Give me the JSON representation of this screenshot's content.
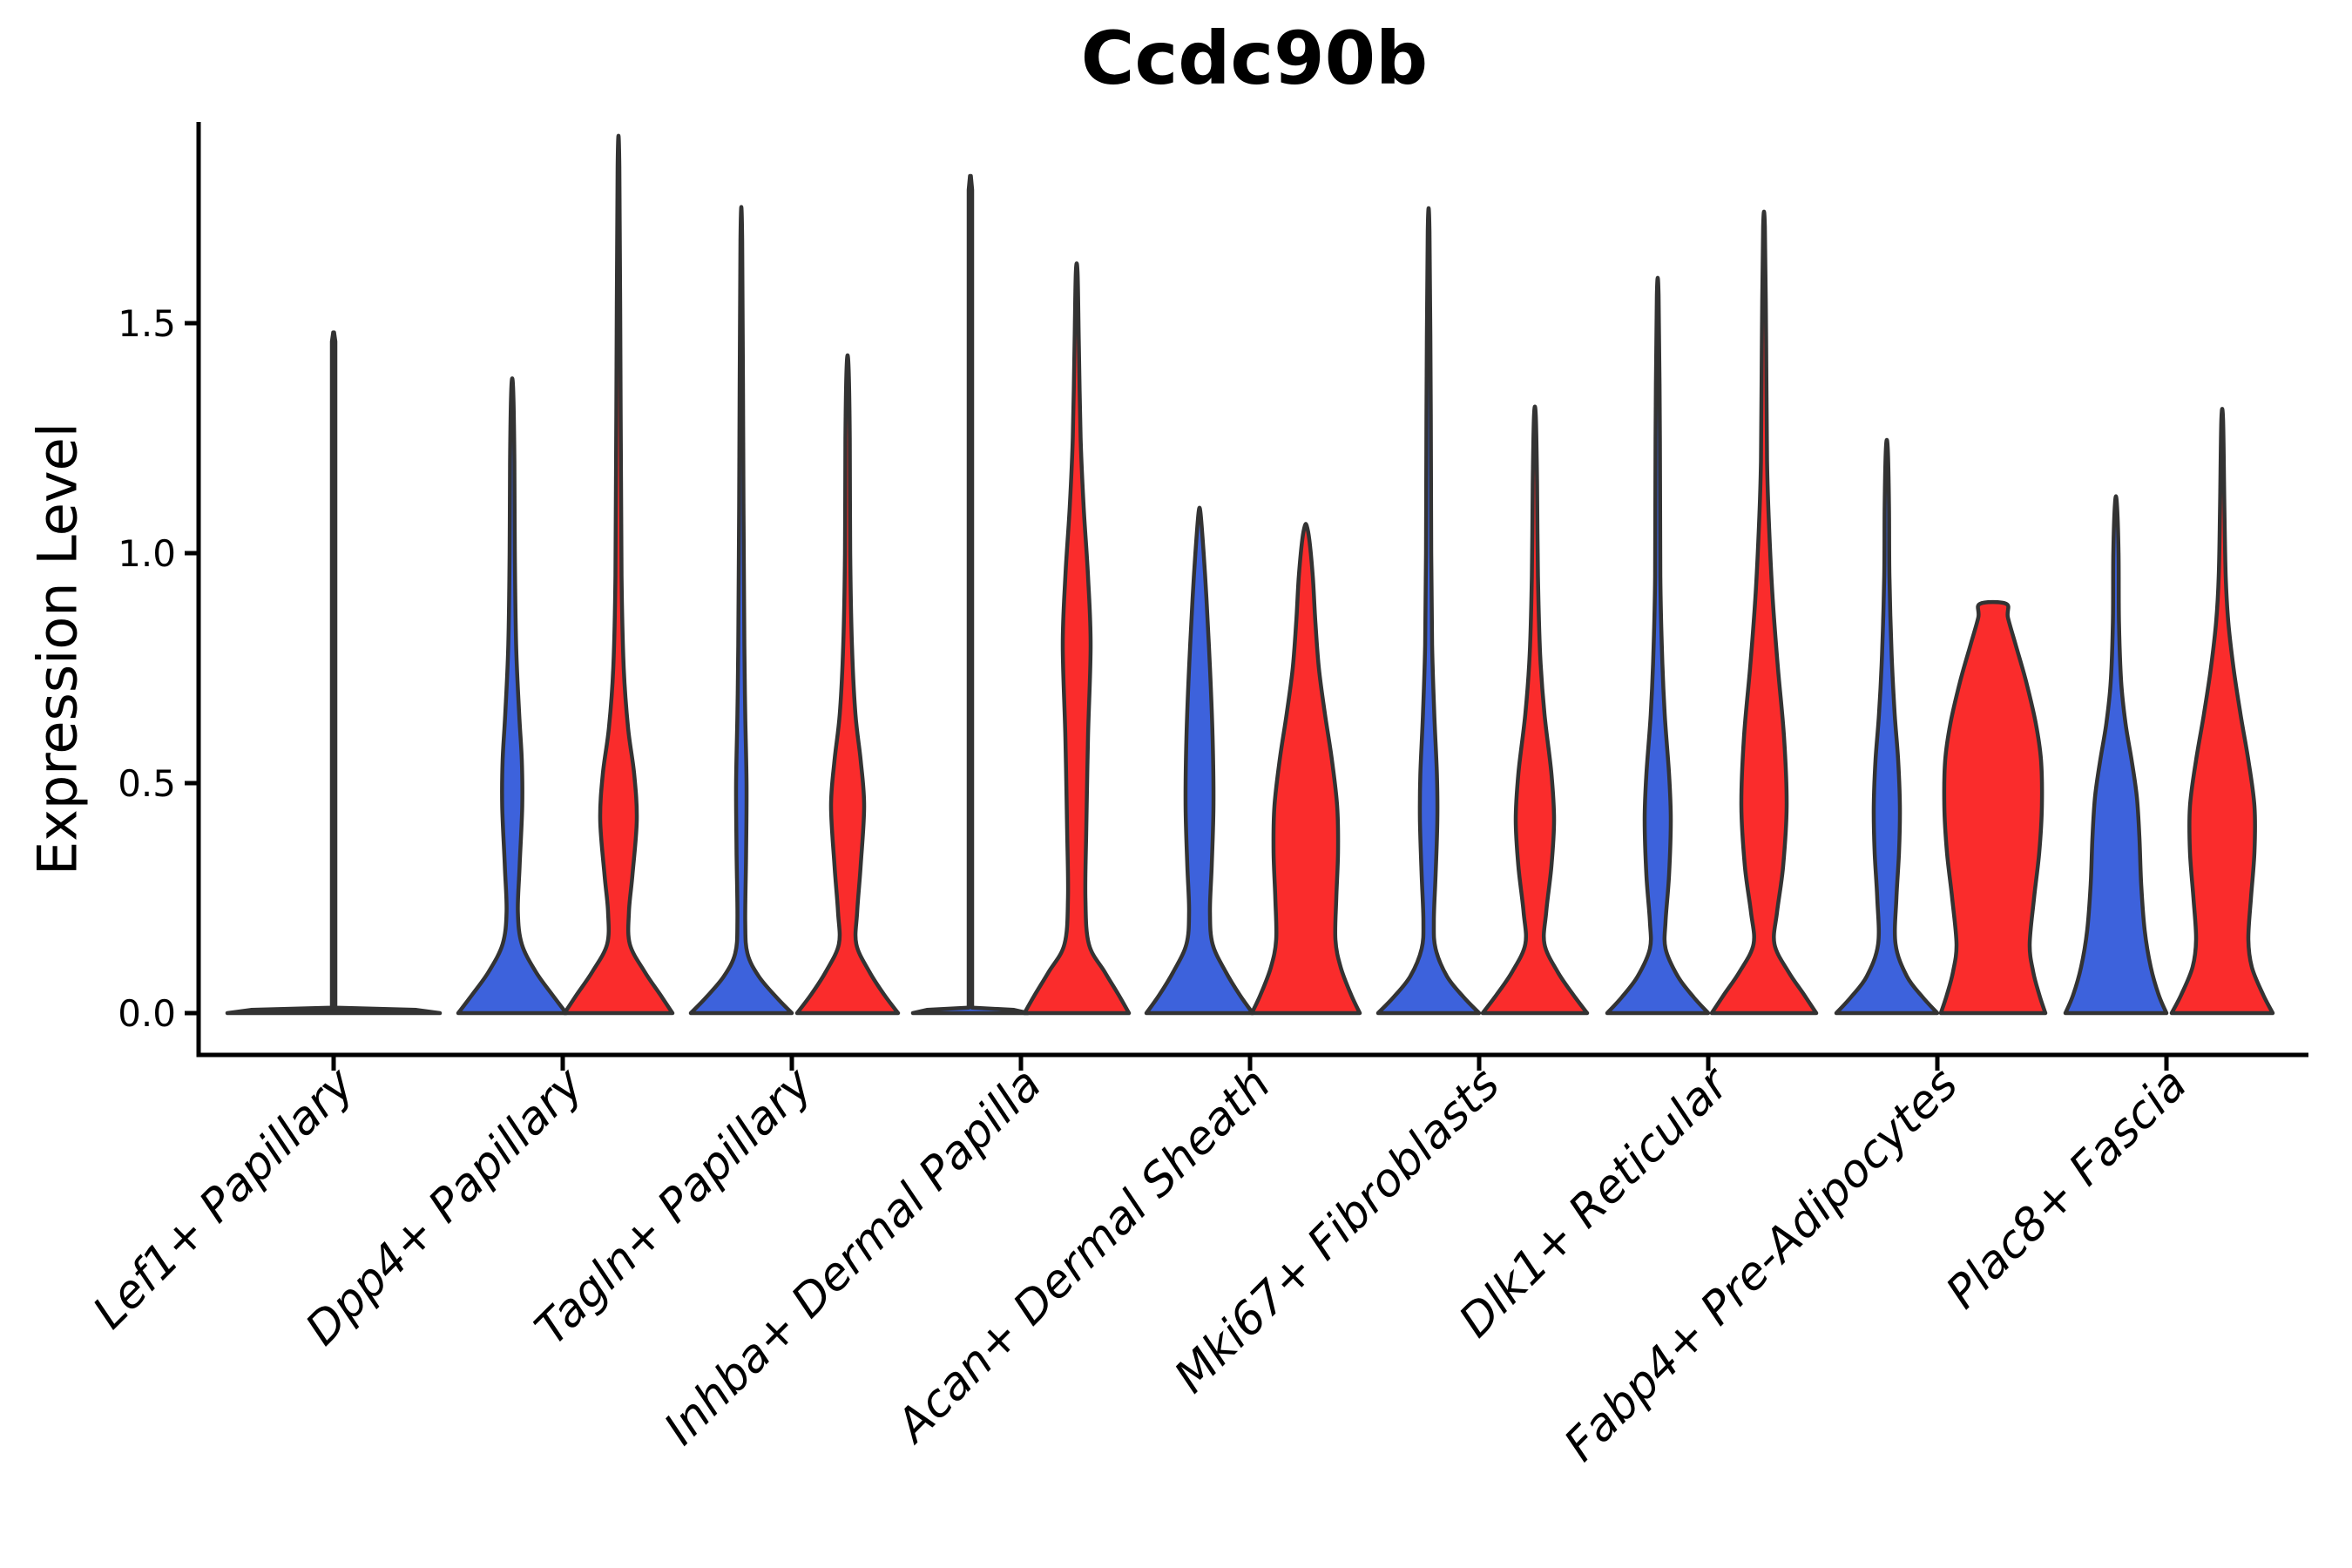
{
  "title": "Ccdc90b",
  "y_axis": {
    "label": "Expression Level"
  },
  "chart_data": {
    "type": "violin",
    "title": "Ccdc90b",
    "ylabel": "Expression Level",
    "ylim": [
      -0.09,
      1.92
    ],
    "yticks": [
      0.0,
      0.5,
      1.0,
      1.5
    ],
    "ytick_labels": [
      "0.0",
      "0.5",
      "1.0",
      "1.5"
    ],
    "grid": false,
    "legend": "none",
    "categories": [
      "Lef1+ Papillary",
      "Dpp4+ Papillary",
      "Tagln+ Papillary",
      "Inhba+ Dermal Papilla",
      "Acan+ Dermal Sheath",
      "Mki67+ Fibroblasts",
      "Dlk1+ Reticular",
      "Fabp4+ Pre-Adipocytes",
      "Plac8+ Fascia"
    ],
    "colors": {
      "blue": "#3D62DC",
      "red": "#FA2C2C",
      "dark": "#333333",
      "outline": "#333333",
      "axis": "#000000"
    },
    "violins": [
      {
        "cat_index": 0,
        "category": "Lef1+ Papillary",
        "side": "center",
        "fill": "dark",
        "smooth": false,
        "top": 1.48,
        "profile": [
          [
            0,
            122
          ],
          [
            0.007,
            95
          ],
          [
            0.012,
            2
          ],
          [
            1.46,
            2
          ],
          [
            1.48,
            0.5
          ]
        ]
      },
      {
        "cat_index": 1,
        "category": "Dpp4+ Papillary",
        "side": "blue",
        "fill": "blue",
        "smooth": true,
        "top": 1.36,
        "profile": [
          [
            0,
            62
          ],
          [
            0.04,
            46
          ],
          [
            0.09,
            27
          ],
          [
            0.15,
            11
          ],
          [
            0.22,
            6.5
          ],
          [
            0.32,
            8.5
          ],
          [
            0.45,
            11.5
          ],
          [
            0.55,
            11
          ],
          [
            0.65,
            8
          ],
          [
            0.8,
            4.5
          ],
          [
            1.0,
            3
          ],
          [
            1.2,
            2.5
          ],
          [
            1.36,
            1
          ]
        ]
      },
      {
        "cat_index": 1,
        "category": "Dpp4+ Papillary",
        "side": "red",
        "fill": "red",
        "smooth": true,
        "top": 1.84,
        "profile": [
          [
            0,
            62
          ],
          [
            0.04,
            48
          ],
          [
            0.09,
            30
          ],
          [
            0.15,
            13
          ],
          [
            0.22,
            12
          ],
          [
            0.3,
            16
          ],
          [
            0.42,
            21
          ],
          [
            0.52,
            18
          ],
          [
            0.62,
            11
          ],
          [
            0.75,
            6
          ],
          [
            0.95,
            3.5
          ],
          [
            1.3,
            2.5
          ],
          [
            1.84,
            1
          ]
        ]
      },
      {
        "cat_index": 2,
        "category": "Tagln+ Papillary",
        "side": "blue",
        "fill": "blue",
        "smooth": true,
        "top": 1.68,
        "profile": [
          [
            0,
            58
          ],
          [
            0.035,
            40
          ],
          [
            0.08,
            20
          ],
          [
            0.13,
            7
          ],
          [
            0.2,
            4.5
          ],
          [
            0.35,
            5.5
          ],
          [
            0.5,
            6
          ],
          [
            0.65,
            4.5
          ],
          [
            0.8,
            3.5
          ],
          [
            1.1,
            2.5
          ],
          [
            1.68,
            1
          ]
        ]
      },
      {
        "cat_index": 2,
        "category": "Tagln+ Papillary",
        "side": "red",
        "fill": "red",
        "smooth": true,
        "top": 1.41,
        "profile": [
          [
            0,
            58
          ],
          [
            0.04,
            42
          ],
          [
            0.09,
            25
          ],
          [
            0.15,
            10
          ],
          [
            0.22,
            11
          ],
          [
            0.32,
            15
          ],
          [
            0.45,
            19
          ],
          [
            0.55,
            15
          ],
          [
            0.65,
            9
          ],
          [
            0.8,
            5
          ],
          [
            1.0,
            3
          ],
          [
            1.25,
            2.5
          ],
          [
            1.41,
            1
          ]
        ]
      },
      {
        "cat_index": 3,
        "category": "Inhba+ Dermal Papilla",
        "side": "blue",
        "fill": "blue",
        "smooth": false,
        "top": 1.82,
        "profile": [
          [
            0,
            66
          ],
          [
            0.007,
            50
          ],
          [
            0.012,
            2
          ],
          [
            1.79,
            2
          ],
          [
            1.82,
            0.5
          ]
        ]
      },
      {
        "cat_index": 3,
        "category": "Inhba+ Dermal Papilla",
        "side": "red",
        "fill": "red",
        "smooth": true,
        "top": 1.61,
        "profile": [
          [
            0,
            60
          ],
          [
            0.04,
            48
          ],
          [
            0.09,
            32
          ],
          [
            0.15,
            14
          ],
          [
            0.25,
            10
          ],
          [
            0.4,
            11
          ],
          [
            0.6,
            13
          ],
          [
            0.8,
            16
          ],
          [
            0.95,
            13
          ],
          [
            1.1,
            8
          ],
          [
            1.25,
            4.5
          ],
          [
            1.45,
            2.5
          ],
          [
            1.61,
            1
          ]
        ]
      },
      {
        "cat_index": 4,
        "category": "Acan+ Dermal Sheath",
        "side": "blue",
        "fill": "blue",
        "smooth": true,
        "top": 1.09,
        "profile": [
          [
            0,
            61
          ],
          [
            0.04,
            46
          ],
          [
            0.09,
            30
          ],
          [
            0.15,
            15
          ],
          [
            0.22,
            12
          ],
          [
            0.32,
            14
          ],
          [
            0.45,
            16
          ],
          [
            0.6,
            15
          ],
          [
            0.75,
            12
          ],
          [
            0.9,
            8
          ],
          [
            1.02,
            4
          ],
          [
            1.09,
            1
          ]
        ]
      },
      {
        "cat_index": 4,
        "category": "Acan+ Dermal Sheath",
        "side": "red",
        "fill": "red",
        "smooth": true,
        "top": 1.06,
        "profile": [
          [
            0,
            62
          ],
          [
            0.04,
            52
          ],
          [
            0.1,
            40
          ],
          [
            0.16,
            34
          ],
          [
            0.25,
            35
          ],
          [
            0.35,
            37
          ],
          [
            0.45,
            36
          ],
          [
            0.55,
            30
          ],
          [
            0.65,
            22
          ],
          [
            0.75,
            15
          ],
          [
            0.85,
            11
          ],
          [
            0.95,
            8
          ],
          [
            1.03,
            4
          ],
          [
            1.06,
            1
          ]
        ]
      },
      {
        "cat_index": 5,
        "category": "Mki67+ Fibroblasts",
        "side": "blue",
        "fill": "blue",
        "smooth": true,
        "top": 1.7,
        "profile": [
          [
            0,
            58
          ],
          [
            0.035,
            40
          ],
          [
            0.08,
            21
          ],
          [
            0.14,
            8
          ],
          [
            0.2,
            6
          ],
          [
            0.3,
            8
          ],
          [
            0.42,
            10
          ],
          [
            0.52,
            9.5
          ],
          [
            0.65,
            6.5
          ],
          [
            0.8,
            4
          ],
          [
            1.0,
            3
          ],
          [
            1.3,
            2.5
          ],
          [
            1.7,
            1
          ]
        ]
      },
      {
        "cat_index": 5,
        "category": "Mki67+ Fibroblasts",
        "side": "red",
        "fill": "red",
        "smooth": true,
        "top": 1.3,
        "profile": [
          [
            0,
            60
          ],
          [
            0.04,
            44
          ],
          [
            0.09,
            26
          ],
          [
            0.15,
            11
          ],
          [
            0.22,
            13
          ],
          [
            0.32,
            19
          ],
          [
            0.42,
            22
          ],
          [
            0.52,
            19
          ],
          [
            0.65,
            11
          ],
          [
            0.78,
            6
          ],
          [
            0.95,
            3.5
          ],
          [
            1.15,
            2.5
          ],
          [
            1.3,
            1
          ]
        ]
      },
      {
        "cat_index": 6,
        "category": "Dlk1+ Reticular",
        "side": "blue",
        "fill": "blue",
        "smooth": true,
        "top": 1.56,
        "profile": [
          [
            0,
            58
          ],
          [
            0.035,
            41
          ],
          [
            0.08,
            23
          ],
          [
            0.14,
            9
          ],
          [
            0.2,
            9
          ],
          [
            0.3,
            13
          ],
          [
            0.42,
            15
          ],
          [
            0.52,
            13
          ],
          [
            0.65,
            8
          ],
          [
            0.78,
            5
          ],
          [
            0.95,
            3
          ],
          [
            1.25,
            2.5
          ],
          [
            1.56,
            1
          ]
        ]
      },
      {
        "cat_index": 6,
        "category": "Dlk1+ Reticular",
        "side": "red",
        "fill": "red",
        "smooth": true,
        "top": 1.71,
        "profile": [
          [
            0,
            60
          ],
          [
            0.04,
            46
          ],
          [
            0.09,
            28
          ],
          [
            0.15,
            12
          ],
          [
            0.22,
            15
          ],
          [
            0.32,
            22
          ],
          [
            0.45,
            26
          ],
          [
            0.6,
            23
          ],
          [
            0.75,
            16
          ],
          [
            0.9,
            10
          ],
          [
            1.05,
            6
          ],
          [
            1.2,
            3.5
          ],
          [
            1.45,
            2.5
          ],
          [
            1.71,
            1
          ]
        ]
      },
      {
        "cat_index": 7,
        "category": "Fabp4+ Pre-Adipocytes",
        "side": "blue",
        "fill": "blue",
        "smooth": true,
        "top": 1.23,
        "profile": [
          [
            0,
            58
          ],
          [
            0.035,
            41
          ],
          [
            0.08,
            23
          ],
          [
            0.15,
            10
          ],
          [
            0.25,
            11
          ],
          [
            0.35,
            14
          ],
          [
            0.45,
            15
          ],
          [
            0.55,
            13
          ],
          [
            0.65,
            9
          ],
          [
            0.78,
            5.5
          ],
          [
            0.95,
            3
          ],
          [
            1.1,
            2.5
          ],
          [
            1.23,
            1
          ]
        ]
      },
      {
        "cat_index": 7,
        "category": "Fabp4+ Pre-Adipocytes",
        "side": "red",
        "fill": "red",
        "smooth": true,
        "top": 0.89,
        "profile": [
          [
            0,
            60
          ],
          [
            0.04,
            53
          ],
          [
            0.09,
            46
          ],
          [
            0.15,
            42
          ],
          [
            0.25,
            47
          ],
          [
            0.35,
            53
          ],
          [
            0.45,
            56
          ],
          [
            0.55,
            55
          ],
          [
            0.63,
            49
          ],
          [
            0.72,
            38
          ],
          [
            0.8,
            26
          ],
          [
            0.86,
            17
          ],
          [
            0.89,
            15
          ]
        ]
      },
      {
        "cat_index": 8,
        "category": "Plac8+ Fascia",
        "side": "blue",
        "fill": "blue",
        "smooth": true,
        "top": 1.11,
        "profile": [
          [
            0,
            58
          ],
          [
            0.04,
            49
          ],
          [
            0.1,
            40
          ],
          [
            0.18,
            33
          ],
          [
            0.28,
            29
          ],
          [
            0.38,
            27
          ],
          [
            0.47,
            24
          ],
          [
            0.55,
            18
          ],
          [
            0.63,
            11
          ],
          [
            0.72,
            6
          ],
          [
            0.85,
            3.5
          ],
          [
            1.0,
            3
          ],
          [
            1.11,
            1
          ]
        ]
      },
      {
        "cat_index": 8,
        "category": "Plac8+ Fascia",
        "side": "red",
        "fill": "red",
        "smooth": true,
        "top": 1.29,
        "profile": [
          [
            0,
            58
          ],
          [
            0.04,
            47
          ],
          [
            0.1,
            34
          ],
          [
            0.16,
            30
          ],
          [
            0.25,
            33
          ],
          [
            0.35,
            37
          ],
          [
            0.45,
            37
          ],
          [
            0.55,
            30
          ],
          [
            0.65,
            21
          ],
          [
            0.75,
            13
          ],
          [
            0.85,
            7
          ],
          [
            0.95,
            4
          ],
          [
            1.1,
            2.5
          ],
          [
            1.29,
            1
          ]
        ]
      }
    ]
  }
}
